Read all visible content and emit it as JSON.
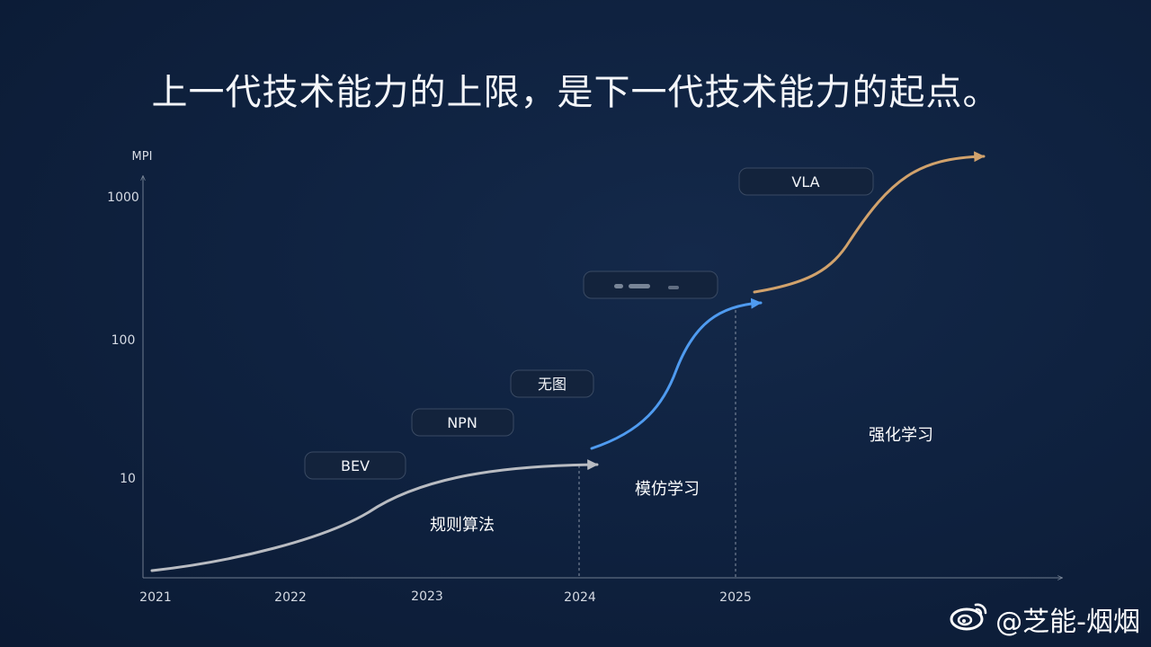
{
  "title": "上一代技术能力的上限，是下一代技术能力的起点。",
  "chart_data": {
    "type": "line",
    "ylabel": "MPI",
    "yscale": "log",
    "yticks": [
      "1000",
      "100",
      "10"
    ],
    "xticks": [
      "2021",
      "2022",
      "2023",
      "2024",
      "2025"
    ],
    "milestones": [
      "BEV",
      "NPN",
      "无图",
      "",
      "VLA"
    ],
    "phases": [
      {
        "label": "规则算法",
        "color": "#b9bcc2"
      },
      {
        "label": "模仿学习",
        "color": "#4f9bf0"
      },
      {
        "label": "强化学习",
        "color": "#d1a26c"
      }
    ]
  },
  "watermark": {
    "text": "@芝能-烟烟",
    "icon": "weibo-icon"
  }
}
